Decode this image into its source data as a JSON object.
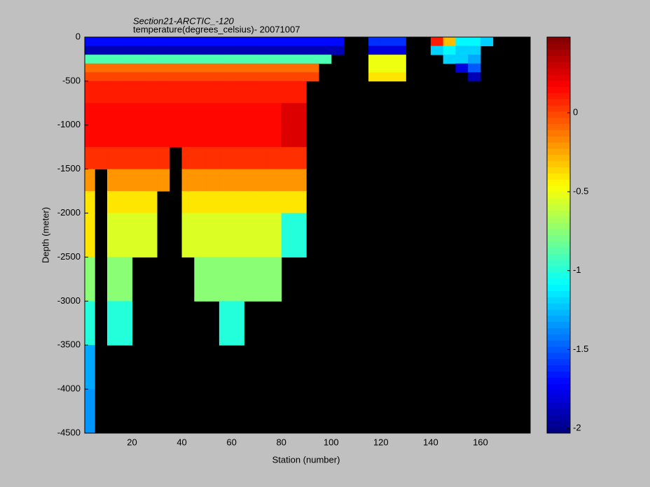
{
  "chart_data": {
    "type": "heatmap",
    "title": "Section21-ARCTIC_-120",
    "subtitle": "temperature(degrees_celsius)- 20071007",
    "xlabel": "Station (number)",
    "ylabel": "Depth (meter)",
    "xlim": [
      1,
      180
    ],
    "ylim": [
      -4500,
      0
    ],
    "xticks": [
      20,
      40,
      60,
      80,
      100,
      120,
      140,
      160
    ],
    "yticks": [
      0,
      -500,
      -1000,
      -1500,
      -2000,
      -2500,
      -3000,
      -3500,
      -4000,
      -4500
    ],
    "clim": [
      -2.03,
      0.48
    ],
    "cticks": [
      0,
      -0.5,
      -1,
      -1.5,
      -2
    ],
    "colormap": "jet",
    "missing_color": "#000000",
    "x_edges": [
      1,
      5,
      10,
      15,
      20,
      25,
      30,
      35,
      40,
      45,
      50,
      55,
      60,
      65,
      70,
      75,
      80,
      85,
      90,
      95,
      100,
      105,
      110,
      115,
      120,
      125,
      130,
      135,
      140,
      145,
      150,
      155,
      160,
      165,
      170,
      175,
      180
    ],
    "y_edges": [
      0,
      -100,
      -200,
      -300,
      -400,
      -500,
      -750,
      -1000,
      -1250,
      -1500,
      -1750,
      -2000,
      -2500,
      -3000,
      -3500,
      -4000,
      -4500
    ],
    "z": [
      [
        -1.7,
        -1.7,
        -1.7,
        -1.7,
        -1.7,
        -1.7,
        -1.7,
        -1.7,
        -1.7,
        -1.7,
        -1.7,
        -1.7,
        -1.7,
        -1.7,
        -1.7,
        -1.7,
        -1.7,
        -1.7,
        -1.7,
        -1.7,
        -1.7,
        null,
        null,
        -1.6,
        -1.6,
        -1.6,
        null,
        null,
        0.1,
        -0.3,
        -1.1,
        -1.1,
        -1.2,
        null,
        null,
        null
      ],
      [
        -1.9,
        -1.9,
        -1.9,
        -1.9,
        -1.9,
        -1.9,
        -1.9,
        -1.9,
        -1.9,
        -1.9,
        -1.9,
        -1.9,
        -1.9,
        -1.9,
        -1.9,
        -1.9,
        -1.9,
        -1.9,
        -1.9,
        -1.9,
        -1.9,
        null,
        null,
        -1.8,
        -1.8,
        -1.8,
        null,
        null,
        -1.2,
        -1.1,
        -1.2,
        -1.2,
        null,
        null,
        null,
        null
      ],
      [
        -0.9,
        -0.9,
        -0.9,
        -0.9,
        -0.9,
        -0.9,
        -0.9,
        -0.9,
        -0.9,
        -0.9,
        -0.9,
        -0.9,
        -0.9,
        -0.9,
        -0.9,
        -0.9,
        -0.9,
        -0.9,
        -0.9,
        -0.9,
        null,
        null,
        null,
        -0.5,
        -0.5,
        -0.5,
        null,
        null,
        null,
        -1.2,
        -1.2,
        -1.3,
        null,
        null,
        null,
        null
      ],
      [
        -0.1,
        -0.1,
        -0.1,
        -0.1,
        -0.1,
        -0.1,
        -0.1,
        -0.1,
        -0.1,
        -0.1,
        -0.1,
        -0.1,
        -0.1,
        -0.1,
        -0.1,
        -0.1,
        -0.1,
        -0.1,
        -0.1,
        null,
        null,
        null,
        null,
        -0.5,
        -0.5,
        -0.5,
        null,
        null,
        null,
        null,
        -1.8,
        -1.5,
        null,
        null,
        null,
        null
      ],
      [
        0.0,
        0.0,
        0.0,
        0.0,
        0.0,
        0.0,
        0.0,
        0.0,
        0.0,
        0.0,
        0.0,
        0.0,
        0.0,
        0.0,
        0.0,
        0.0,
        0.0,
        0.0,
        0.0,
        null,
        null,
        null,
        null,
        -0.4,
        -0.4,
        -0.4,
        null,
        null,
        null,
        null,
        null,
        -1.9,
        null,
        null,
        null,
        null
      ],
      [
        0.1,
        0.1,
        0.1,
        0.1,
        0.1,
        0.1,
        0.1,
        0.1,
        0.1,
        0.1,
        0.1,
        0.1,
        0.1,
        0.1,
        0.1,
        0.1,
        0.1,
        0.1,
        null,
        null,
        null,
        null,
        null,
        null,
        null,
        null,
        null,
        null,
        null,
        null,
        null,
        null,
        null,
        null,
        null,
        null
      ],
      [
        0.15,
        0.15,
        0.15,
        0.15,
        0.15,
        0.15,
        0.15,
        0.15,
        0.15,
        0.15,
        0.15,
        0.15,
        0.15,
        0.15,
        0.15,
        0.15,
        0.25,
        0.25,
        null,
        null,
        null,
        null,
        null,
        null,
        null,
        null,
        null,
        null,
        null,
        null,
        null,
        null,
        null,
        null,
        null,
        null
      ],
      [
        0.15,
        0.15,
        0.15,
        0.15,
        0.15,
        0.15,
        0.15,
        0.15,
        0.15,
        0.15,
        0.15,
        0.15,
        0.15,
        0.15,
        0.15,
        0.15,
        0.25,
        0.25,
        null,
        null,
        null,
        null,
        null,
        null,
        null,
        null,
        null,
        null,
        null,
        null,
        null,
        null,
        null,
        null,
        null,
        null
      ],
      [
        0.05,
        0.05,
        0.05,
        0.05,
        0.05,
        0.05,
        0.05,
        null,
        0.05,
        0.05,
        0.05,
        0.05,
        0.05,
        0.05,
        0.05,
        0.05,
        0.05,
        0.05,
        null,
        null,
        null,
        null,
        null,
        null,
        null,
        null,
        null,
        null,
        null,
        null,
        null,
        null,
        null,
        null,
        null,
        null
      ],
      [
        -0.2,
        null,
        -0.2,
        -0.2,
        -0.2,
        -0.2,
        -0.2,
        null,
        -0.2,
        -0.2,
        -0.2,
        -0.2,
        -0.2,
        -0.2,
        -0.2,
        -0.2,
        -0.2,
        -0.2,
        null,
        null,
        null,
        null,
        null,
        null,
        null,
        null,
        null,
        null,
        null,
        null,
        null,
        null,
        null,
        null,
        null,
        null
      ],
      [
        -0.4,
        null,
        -0.4,
        -0.4,
        -0.4,
        -0.4,
        null,
        null,
        -0.4,
        -0.4,
        -0.4,
        -0.4,
        -0.4,
        -0.4,
        -0.4,
        -0.4,
        -0.4,
        -0.4,
        null,
        null,
        null,
        null,
        null,
        null,
        null,
        null,
        null,
        null,
        null,
        null,
        null,
        null,
        null,
        null,
        null,
        null
      ],
      [
        -0.4,
        null,
        -0.55,
        -0.55,
        -0.55,
        -0.55,
        null,
        null,
        -0.55,
        -0.55,
        -0.55,
        -0.55,
        -0.55,
        -0.55,
        -0.55,
        -0.55,
        -1.0,
        -1.0,
        null,
        null,
        null,
        null,
        null,
        null,
        null,
        null,
        null,
        null,
        null,
        null,
        null,
        null,
        null,
        null,
        null,
        null
      ],
      [
        -0.75,
        null,
        -0.75,
        -0.75,
        null,
        null,
        null,
        null,
        null,
        -0.75,
        -0.75,
        -0.75,
        -0.75,
        -0.75,
        -0.75,
        -0.75,
        null,
        null,
        null,
        null,
        null,
        null,
        null,
        null,
        null,
        null,
        null,
        null,
        null,
        null,
        null,
        null,
        null,
        null,
        null,
        null
      ],
      [
        -1.0,
        null,
        -1.0,
        -1.0,
        null,
        null,
        null,
        null,
        null,
        null,
        null,
        -1.0,
        -1.0,
        null,
        null,
        null,
        null,
        null,
        null,
        null,
        null,
        null,
        null,
        null,
        null,
        null,
        null,
        null,
        null,
        null,
        null,
        null,
        null,
        null,
        null,
        null
      ],
      [
        -1.3,
        null,
        null,
        null,
        null,
        null,
        null,
        null,
        null,
        null,
        null,
        null,
        null,
        null,
        null,
        null,
        null,
        null,
        null,
        null,
        null,
        null,
        null,
        null,
        null,
        null,
        null,
        null,
        null,
        null,
        null,
        null,
        null,
        null,
        null,
        null
      ],
      [
        -1.35,
        null,
        null,
        null,
        null,
        null,
        null,
        null,
        null,
        null,
        null,
        null,
        null,
        null,
        null,
        null,
        null,
        null,
        null,
        null,
        null,
        null,
        null,
        null,
        null,
        null,
        null,
        null,
        null,
        null,
        null,
        null,
        null,
        null,
        null,
        null
      ]
    ]
  }
}
